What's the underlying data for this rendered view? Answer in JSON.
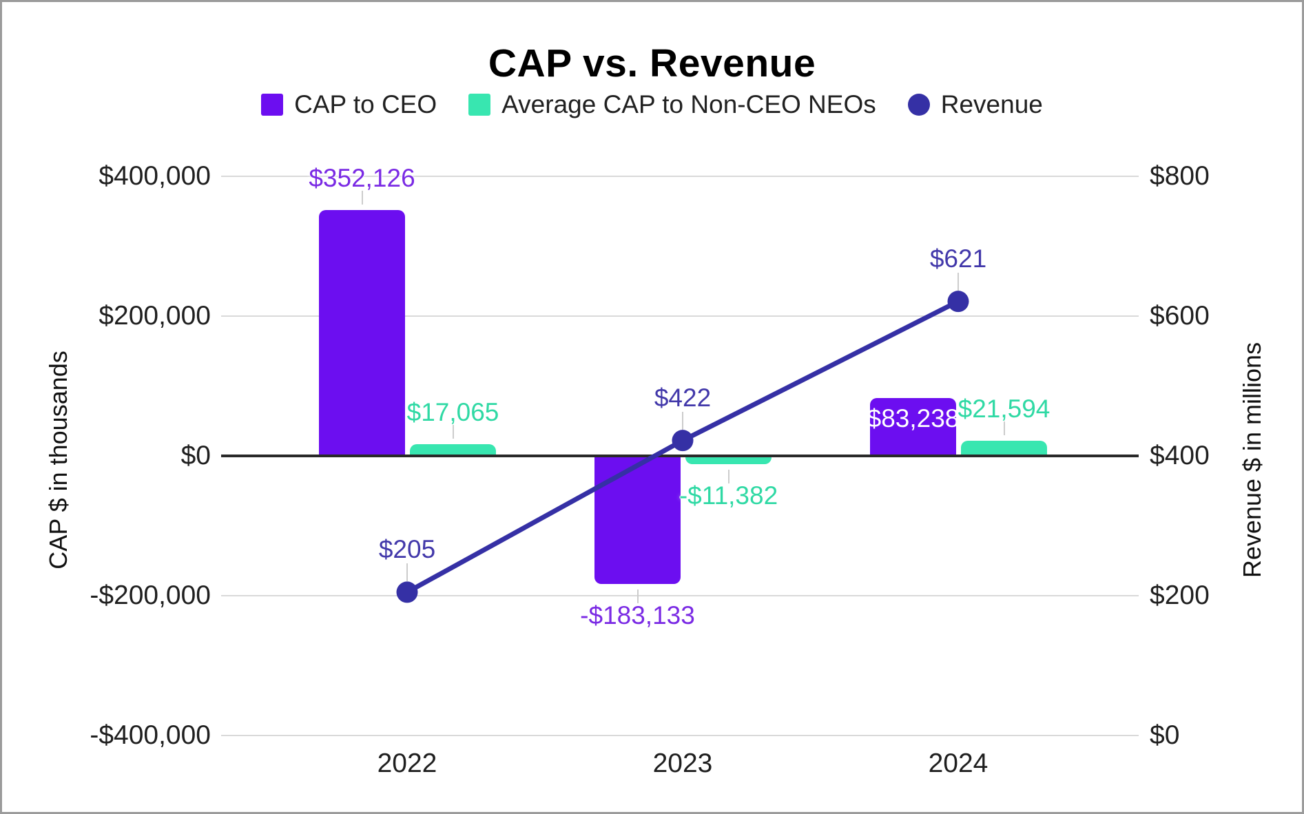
{
  "title": "CAP vs. Revenue",
  "colors": {
    "cap_to_ceo": "#6c0ef0",
    "avg_cap_non_ceo": "#38e6b0",
    "revenue": "#3530a5",
    "cap_label": "#7a2ae4",
    "avg_label": "#2fd9a4",
    "revenue_label": "#4238aa",
    "grid": "#d9d9d9",
    "zero_line": "#292929",
    "stem": "#cccccc"
  },
  "legend": [
    {
      "label": "CAP to CEO",
      "marker": "square",
      "color_key": "cap_to_ceo"
    },
    {
      "label": "Average CAP to Non-CEO NEOs",
      "marker": "square",
      "color_key": "avg_cap_non_ceo"
    },
    {
      "label": "Revenue",
      "marker": "circle",
      "color_key": "revenue"
    }
  ],
  "left_axis": {
    "title": "CAP $ in thousands",
    "ticks": [
      {
        "label": "$400,000",
        "value": 400000
      },
      {
        "label": "$200,000",
        "value": 200000
      },
      {
        "label": "$0",
        "value": 0
      },
      {
        "label": "-$200,000",
        "value": -200000
      },
      {
        "label": "-$400,000",
        "value": -400000
      }
    ]
  },
  "right_axis": {
    "title": "Revenue $ in millions",
    "ticks": [
      {
        "label": "$800",
        "value": 800
      },
      {
        "label": "$600",
        "value": 600
      },
      {
        "label": "$400",
        "value": 400
      },
      {
        "label": "$200",
        "value": 200
      },
      {
        "label": "$0",
        "value": 0
      }
    ]
  },
  "chart_data": {
    "type": "combo-bar-line",
    "categories": [
      "2022",
      "2023",
      "2024"
    ],
    "series": [
      {
        "name": "CAP to CEO",
        "type": "bar",
        "axis": "left",
        "color_key": "cap_to_ceo",
        "label_color_key": "cap_label",
        "values": [
          352126,
          -183133,
          83238
        ],
        "labels": [
          "$352,126",
          "-$183,133",
          "$83,238"
        ],
        "label_inside": [
          false,
          false,
          true
        ]
      },
      {
        "name": "Average CAP to Non-CEO NEOs",
        "type": "bar",
        "axis": "left",
        "color_key": "avg_cap_non_ceo",
        "label_color_key": "avg_label",
        "values": [
          17065,
          -11382,
          21594
        ],
        "labels": [
          "$17,065",
          "-$11,382",
          "$21,594"
        ],
        "label_inside": [
          false,
          false,
          false
        ]
      },
      {
        "name": "Revenue",
        "type": "line",
        "axis": "right",
        "color_key": "revenue",
        "label_color_key": "revenue_label",
        "values": [
          205,
          422,
          621
        ],
        "labels": [
          "$205",
          "$422",
          "$621"
        ]
      }
    ],
    "left_ylim": [
      -400000,
      400000
    ],
    "right_ylim": [
      0,
      800
    ],
    "grid": true,
    "legend_position": "top",
    "title": "CAP vs. Revenue",
    "left_ylabel": "CAP $ in thousands",
    "right_ylabel": "Revenue $ in millions"
  }
}
